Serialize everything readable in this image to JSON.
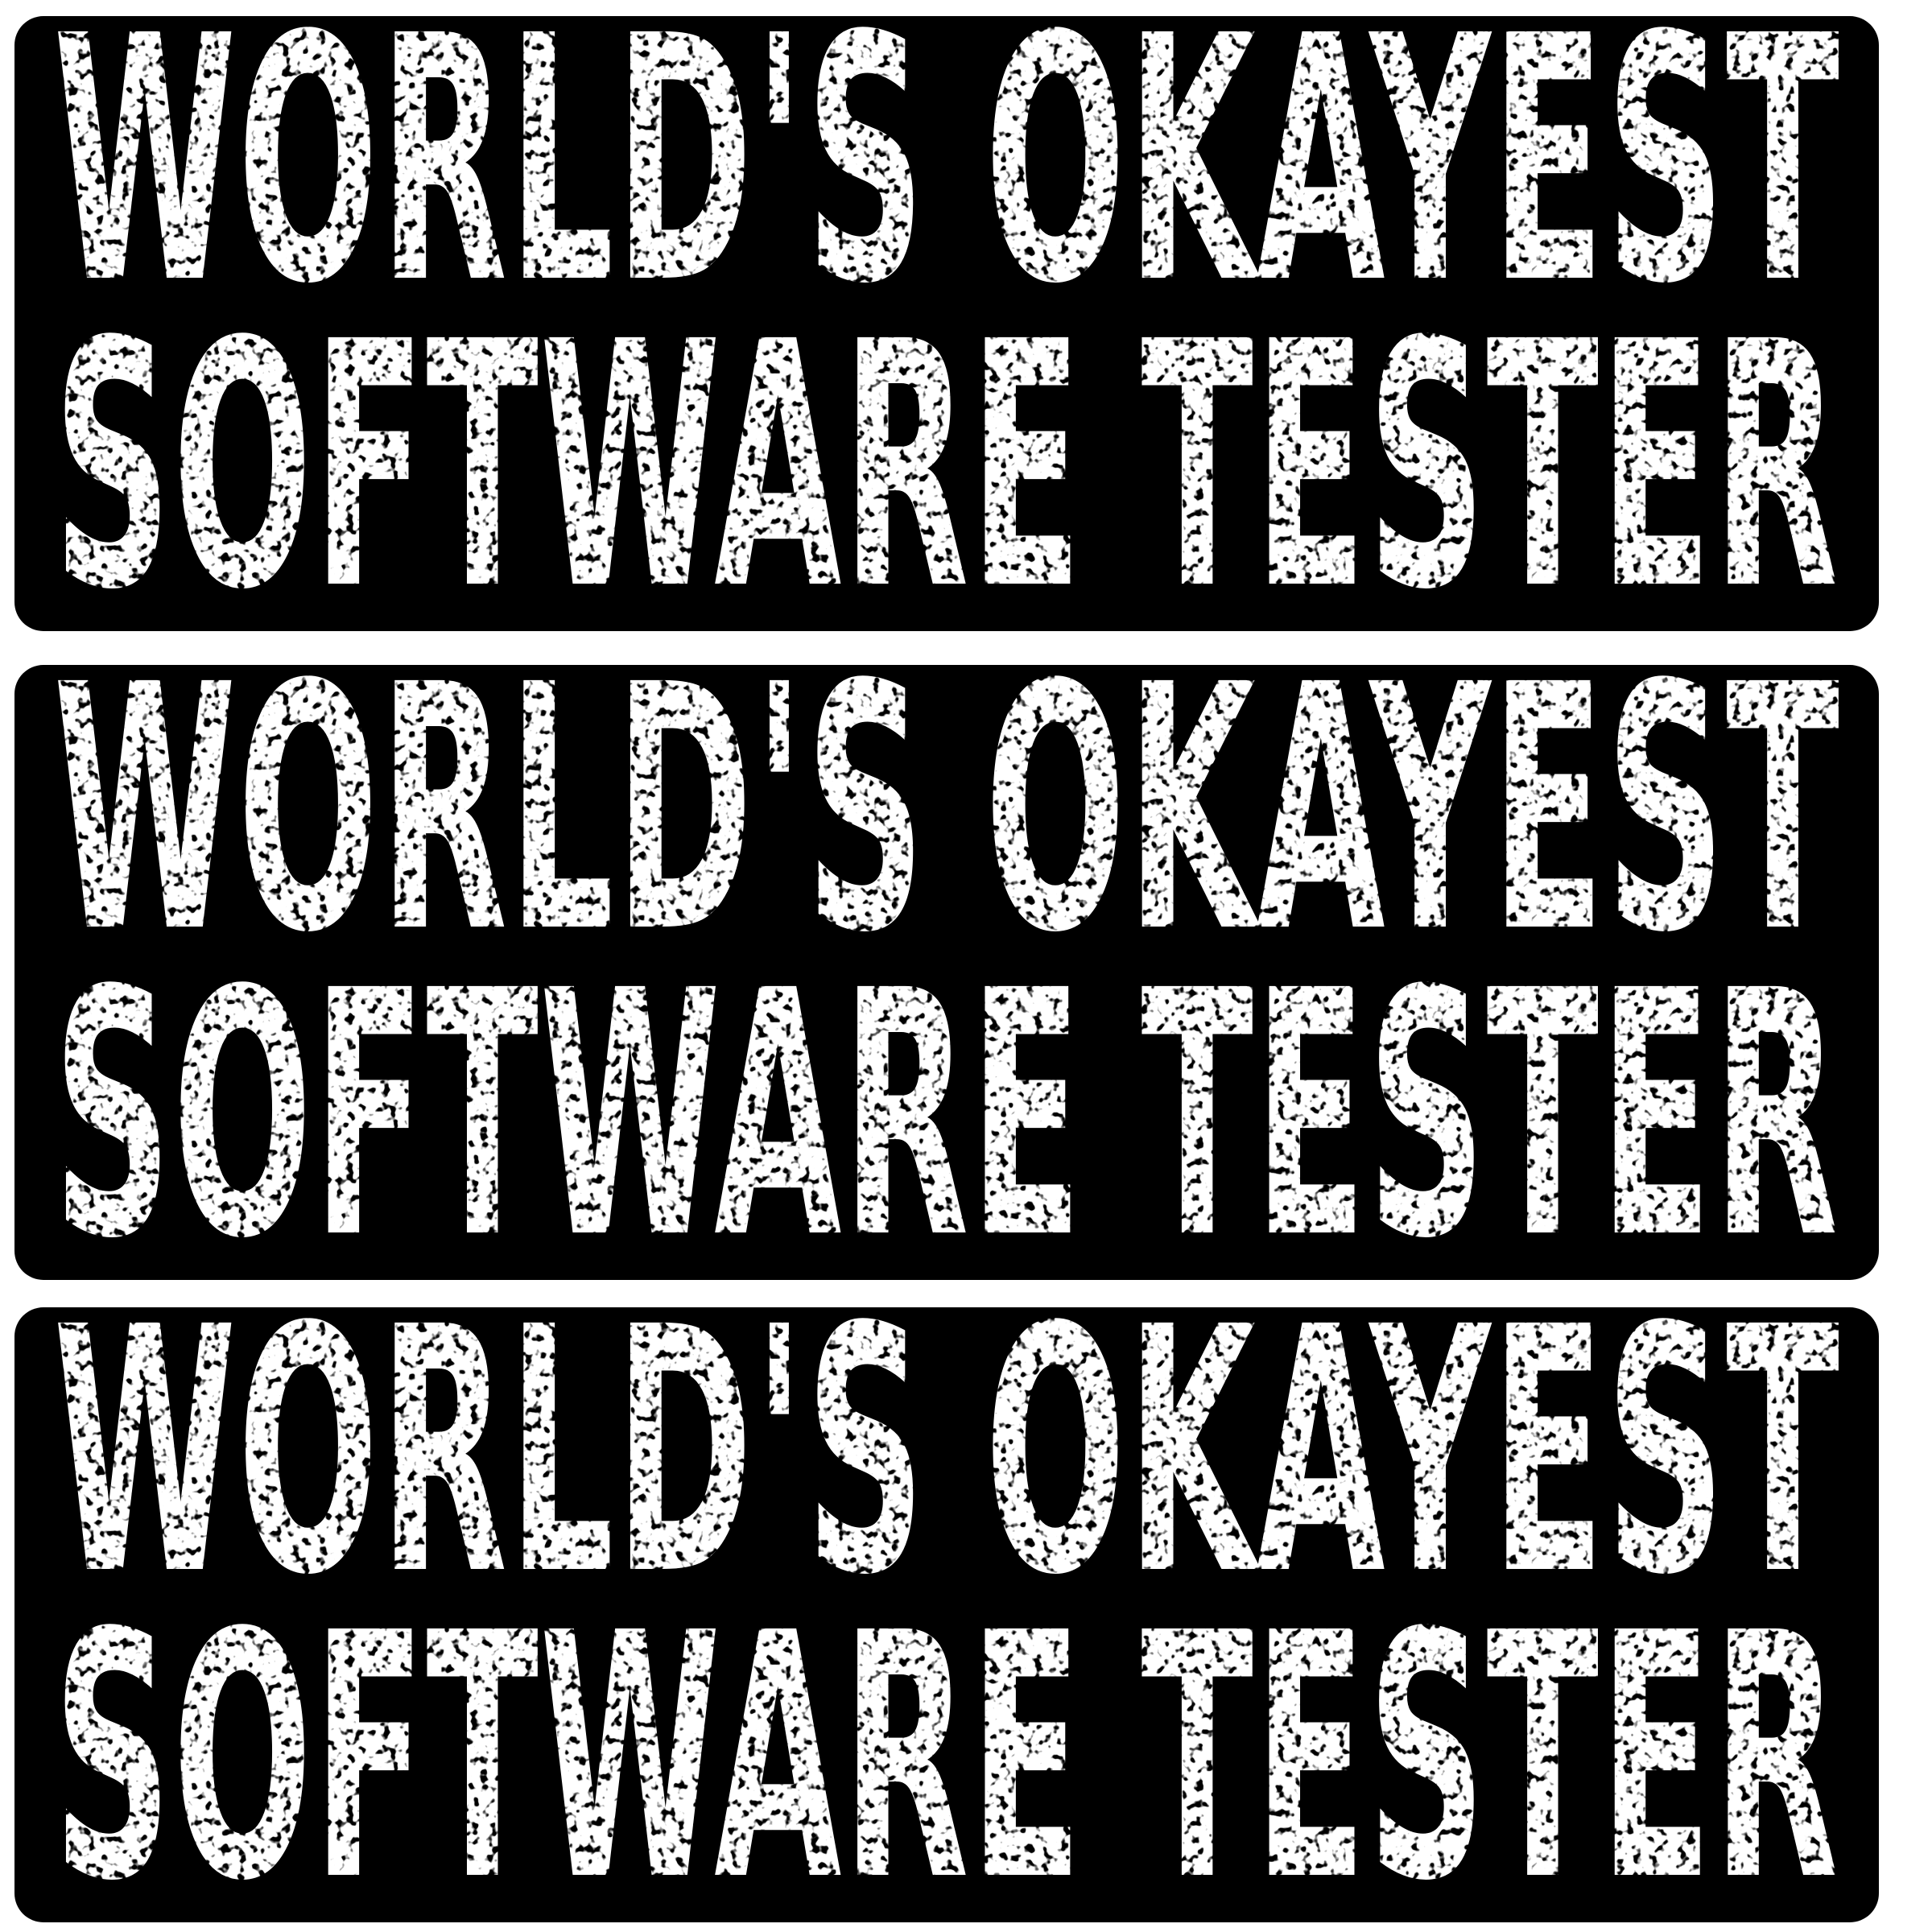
{
  "colors": {
    "background": "#ffffff",
    "sticker_fill": "#000000",
    "text": "#ffffff"
  },
  "stickers": [
    {
      "line1": "WORLD'S OKAYEST",
      "line2": "SOFTWARE TESTER"
    },
    {
      "line1": "WORLD'S OKAYEST",
      "line2": "SOFTWARE TESTER"
    },
    {
      "line1": "WORLD'S OKAYEST",
      "line2": "SOFTWARE TESTER"
    }
  ]
}
